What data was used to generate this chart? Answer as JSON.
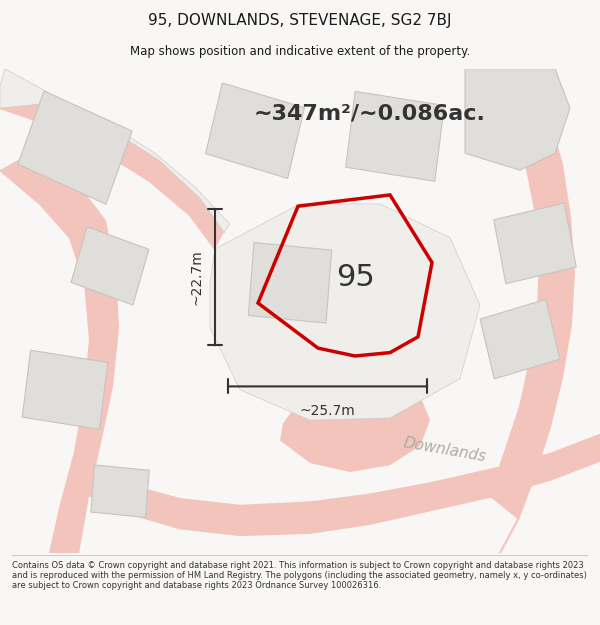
{
  "title": "95, DOWNLANDS, STEVENAGE, SG2 7BJ",
  "subtitle": "Map shows position and indicative extent of the property.",
  "footer": "Contains OS data © Crown copyright and database right 2021. This information is subject to Crown copyright and database rights 2023 and is reproduced with the permission of HM Land Registry. The polygons (including the associated geometry, namely x, y co-ordinates) are subject to Crown copyright and database rights 2023 Ordnance Survey 100026316.",
  "area_label": "~347m²/~0.086ac.",
  "property_number": "95",
  "width_label": "~25.7m",
  "height_label": "~22.7m",
  "street_label": "Downlands",
  "bg_color": "#f8f7f5",
  "map_bg": "#f8f7f5",
  "building_color": "#e0deda",
  "building_edge": "#c8c4be",
  "plot_edge": "#c8c4be",
  "highlight_color": "#cc0000",
  "road_color": "#f2c4bb",
  "line_color": "#333333",
  "footer_color": "#333333",
  "title_color": "#1a1a1a",
  "street_text_color": "#b0aba5",
  "footer_line_color": "#cccccc"
}
